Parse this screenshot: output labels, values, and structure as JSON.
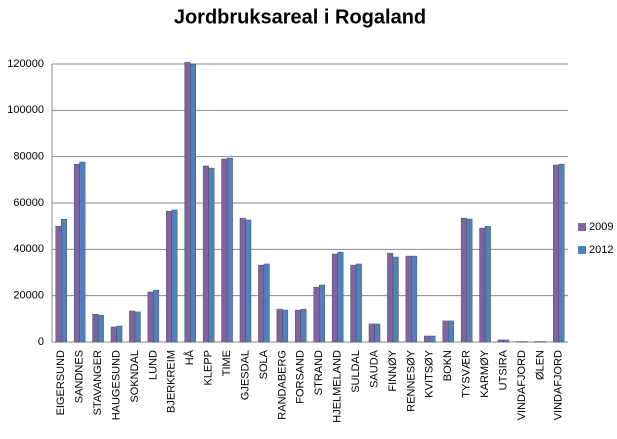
{
  "chart_data": {
    "type": "bar",
    "title": "Jordbruksareal i Rogaland",
    "categories": [
      "EIGERSUND",
      "SANDNES",
      "STAVANGER",
      "HAUGESUND",
      "SOKNDAL",
      "LUND",
      "BJERKREIM",
      "HÅ",
      "KLEPP",
      "TIME",
      "GJESDAL",
      "SOLA",
      "RANDABERG",
      "FORSAND",
      "STRAND",
      "HJELMELAND",
      "SULDAL",
      "SAUDA",
      "FINNØY",
      "RENNESØY",
      "KVITSØY",
      "BOKN",
      "TYSVÆR",
      "KARMØY",
      "UTSIRA",
      "VINDAFJORD",
      "ØLEN",
      "VINDAFJORD"
    ],
    "series": [
      {
        "name": "2009",
        "color": "#8064a2",
        "values": [
          50000,
          76800,
          12000,
          6500,
          13400,
          21600,
          56500,
          120800,
          76000,
          79000,
          53500,
          33200,
          14200,
          13800,
          23700,
          38000,
          33200,
          7800,
          38400,
          37100,
          2600,
          9100,
          53500,
          49200,
          900,
          200,
          200,
          76400
        ]
      },
      {
        "name": "2012",
        "color": "#4f81bd",
        "values": [
          53000,
          77700,
          11600,
          6900,
          13000,
          22400,
          57000,
          120000,
          75100,
          79400,
          52700,
          33700,
          13800,
          14200,
          24600,
          38800,
          33700,
          7800,
          36700,
          37100,
          2600,
          9100,
          53100,
          50000,
          900,
          200,
          200,
          76800
        ]
      }
    ],
    "ylim": [
      0,
      120000
    ],
    "yticks": [
      0,
      20000,
      40000,
      60000,
      80000,
      100000,
      120000
    ],
    "grid": true,
    "legend": "right"
  }
}
